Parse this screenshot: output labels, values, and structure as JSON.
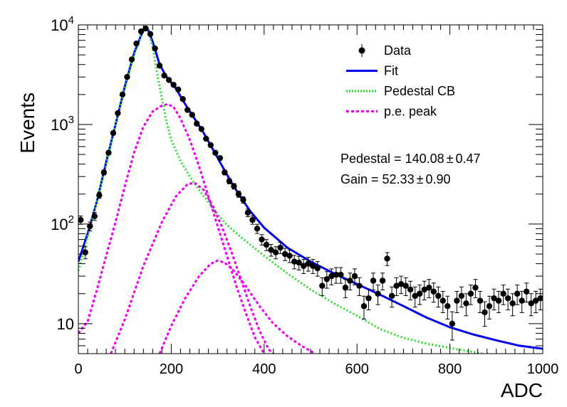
{
  "chart_data": {
    "type": "scatter",
    "title": "",
    "xlabel": "ADC",
    "ylabel": "Events",
    "xlim": [
      0,
      1000
    ],
    "ylim": [
      5,
      10000
    ],
    "yscale": "log",
    "x_ticks": [
      0,
      200,
      400,
      600,
      800,
      1000
    ],
    "y_ticks": [
      {
        "value": 10,
        "base": "10",
        "exp": ""
      },
      {
        "value": 100,
        "base": "10",
        "exp": "2"
      },
      {
        "value": 1000,
        "base": "10",
        "exp": "3"
      },
      {
        "value": 10000,
        "base": "10",
        "exp": "4"
      }
    ],
    "legend": {
      "position": "top-right",
      "entries": [
        {
          "label": "Data",
          "style": "marker",
          "color": "#000000"
        },
        {
          "label": "Fit",
          "style": "solid",
          "color": "#0000ee"
        },
        {
          "label": "Pedestal CB",
          "style": "dotted",
          "color": "#22dd22"
        },
        {
          "label": "p.e. peak",
          "style": "dashed",
          "color": "#ee00ee"
        }
      ]
    },
    "annotations": {
      "pedestal": "Pedestal = 140.08",
      "pedestal_err": "0.47",
      "gain": "Gain = 52.33",
      "gain_err": "0.90",
      "pm": "±"
    },
    "series": [
      {
        "name": "Data",
        "kind": "points",
        "color": "#000000",
        "points": [
          [
            5,
            110
          ],
          [
            15,
            52
          ],
          [
            25,
            95
          ],
          [
            35,
            120
          ],
          [
            45,
            195
          ],
          [
            55,
            330
          ],
          [
            65,
            520
          ],
          [
            75,
            820
          ],
          [
            85,
            1300
          ],
          [
            95,
            2000
          ],
          [
            105,
            3000
          ],
          [
            115,
            4500
          ],
          [
            125,
            6500
          ],
          [
            135,
            8600
          ],
          [
            145,
            9200
          ],
          [
            155,
            8100
          ],
          [
            165,
            5800
          ],
          [
            175,
            3900
          ],
          [
            185,
            3100
          ],
          [
            195,
            2800
          ],
          [
            205,
            2500
          ],
          [
            215,
            2250
          ],
          [
            225,
            1800
          ],
          [
            235,
            1400
          ],
          [
            245,
            1250
          ],
          [
            255,
            1020
          ],
          [
            265,
            900
          ],
          [
            275,
            720
          ],
          [
            285,
            620
          ],
          [
            295,
            520
          ],
          [
            305,
            460
          ],
          [
            315,
            330
          ],
          [
            325,
            270
          ],
          [
            335,
            240
          ],
          [
            345,
            200
          ],
          [
            355,
            175
          ],
          [
            365,
            130
          ],
          [
            375,
            110
          ],
          [
            385,
            90
          ],
          [
            395,
            70
          ],
          [
            405,
            62
          ],
          [
            415,
            55
          ],
          [
            425,
            52
          ],
          [
            435,
            58
          ],
          [
            445,
            50
          ],
          [
            455,
            48
          ],
          [
            465,
            42
          ],
          [
            475,
            41
          ],
          [
            485,
            38
          ],
          [
            495,
            40
          ],
          [
            505,
            38
          ],
          [
            515,
            36
          ],
          [
            525,
            24
          ],
          [
            535,
            28
          ],
          [
            545,
            30
          ],
          [
            555,
            31
          ],
          [
            565,
            31
          ],
          [
            575,
            23
          ],
          [
            585,
            27
          ],
          [
            595,
            30
          ],
          [
            605,
            24
          ],
          [
            615,
            15
          ],
          [
            625,
            18
          ],
          [
            635,
            27
          ],
          [
            645,
            20
          ],
          [
            655,
            27
          ],
          [
            665,
            45
          ],
          [
            675,
            19
          ],
          [
            685,
            24
          ],
          [
            695,
            25
          ],
          [
            705,
            24
          ],
          [
            715,
            22
          ],
          [
            725,
            19
          ],
          [
            735,
            20
          ],
          [
            745,
            22
          ],
          [
            755,
            23
          ],
          [
            765,
            21
          ],
          [
            775,
            19
          ],
          [
            785,
            17
          ],
          [
            795,
            15
          ],
          [
            805,
            10
          ],
          [
            815,
            17
          ],
          [
            825,
            19
          ],
          [
            835,
            16
          ],
          [
            845,
            20
          ],
          [
            855,
            23
          ],
          [
            865,
            17
          ],
          [
            875,
            13
          ],
          [
            885,
            15
          ],
          [
            895,
            18
          ],
          [
            905,
            17
          ],
          [
            915,
            20
          ],
          [
            925,
            18
          ],
          [
            935,
            16
          ],
          [
            945,
            20
          ],
          [
            955,
            17
          ],
          [
            965,
            21
          ],
          [
            975,
            16
          ],
          [
            985,
            17
          ],
          [
            995,
            18
          ]
        ]
      },
      {
        "name": "Fit",
        "kind": "line",
        "color": "#0000ee",
        "points": [
          [
            0,
            42
          ],
          [
            20,
            80
          ],
          [
            40,
            170
          ],
          [
            60,
            420
          ],
          [
            80,
            1000
          ],
          [
            100,
            2400
          ],
          [
            120,
            5200
          ],
          [
            140,
            9000
          ],
          [
            150,
            9000
          ],
          [
            160,
            6800
          ],
          [
            175,
            4000
          ],
          [
            190,
            3000
          ],
          [
            210,
            2300
          ],
          [
            230,
            1600
          ],
          [
            250,
            1150
          ],
          [
            270,
            820
          ],
          [
            290,
            560
          ],
          [
            310,
            380
          ],
          [
            330,
            260
          ],
          [
            350,
            185
          ],
          [
            370,
            135
          ],
          [
            400,
            92
          ],
          [
            450,
            58
          ],
          [
            500,
            42
          ],
          [
            550,
            32
          ],
          [
            600,
            25
          ],
          [
            650,
            19.5
          ],
          [
            700,
            15
          ],
          [
            750,
            11.5
          ],
          [
            800,
            9.2
          ],
          [
            850,
            7.8
          ],
          [
            900,
            6.8
          ],
          [
            950,
            6
          ],
          [
            1000,
            5.6
          ]
        ]
      },
      {
        "name": "Pedestal CB",
        "kind": "line",
        "color": "#22dd22",
        "points": [
          [
            0,
            34
          ],
          [
            20,
            75
          ],
          [
            40,
            170
          ],
          [
            60,
            400
          ],
          [
            80,
            1000
          ],
          [
            100,
            2300
          ],
          [
            120,
            5000
          ],
          [
            140,
            8800
          ],
          [
            150,
            8900
          ],
          [
            160,
            6000
          ],
          [
            170,
            3200
          ],
          [
            180,
            1800
          ],
          [
            190,
            1050
          ],
          [
            200,
            700
          ],
          [
            220,
            430
          ],
          [
            240,
            300
          ],
          [
            260,
            220
          ],
          [
            280,
            165
          ],
          [
            300,
            125
          ],
          [
            320,
            98
          ],
          [
            350,
            74
          ],
          [
            400,
            48
          ],
          [
            450,
            32
          ],
          [
            500,
            22
          ],
          [
            550,
            16
          ],
          [
            600,
            12
          ],
          [
            650,
            8.8
          ],
          [
            700,
            7.2
          ],
          [
            750,
            6.3
          ],
          [
            800,
            5.7
          ],
          [
            850,
            5.2
          ],
          [
            870,
            5
          ]
        ]
      },
      {
        "name": "p.e. peak 1",
        "kind": "line",
        "color": "#ee00ee",
        "points": [
          [
            0,
            8
          ],
          [
            20,
            10.5
          ],
          [
            40,
            22
          ],
          [
            60,
            48
          ],
          [
            80,
            105
          ],
          [
            100,
            240
          ],
          [
            120,
            520
          ],
          [
            140,
            950
          ],
          [
            160,
            1350
          ],
          [
            180,
            1550
          ],
          [
            192,
            1600
          ],
          [
            205,
            1500
          ],
          [
            220,
            1150
          ],
          [
            240,
            700
          ],
          [
            260,
            380
          ],
          [
            280,
            190
          ],
          [
            300,
            95
          ],
          [
            320,
            48
          ],
          [
            340,
            24
          ],
          [
            360,
            13
          ],
          [
            380,
            7.3
          ],
          [
            400,
            5
          ]
        ]
      },
      {
        "name": "p.e. peak 2",
        "kind": "line",
        "color": "#ee00ee",
        "points": [
          [
            70,
            5
          ],
          [
            100,
            11
          ],
          [
            140,
            38
          ],
          [
            180,
            105
          ],
          [
            210,
            190
          ],
          [
            235,
            250
          ],
          [
            250,
            260
          ],
          [
            270,
            220
          ],
          [
            290,
            150
          ],
          [
            310,
            92
          ],
          [
            330,
            52
          ],
          [
            350,
            28
          ],
          [
            370,
            15
          ],
          [
            390,
            8.5
          ],
          [
            410,
            5.5
          ],
          [
            420,
            5
          ]
        ]
      },
      {
        "name": "p.e. peak 3",
        "kind": "line",
        "color": "#ee00ee",
        "points": [
          [
            175,
            5
          ],
          [
            200,
            9.5
          ],
          [
            230,
            18
          ],
          [
            260,
            30
          ],
          [
            285,
            40
          ],
          [
            300,
            43
          ],
          [
            315,
            41
          ],
          [
            335,
            34
          ],
          [
            360,
            24
          ],
          [
            390,
            15
          ],
          [
            420,
            10
          ],
          [
            450,
            7.5
          ],
          [
            480,
            6
          ],
          [
            510,
            5
          ]
        ]
      }
    ]
  }
}
